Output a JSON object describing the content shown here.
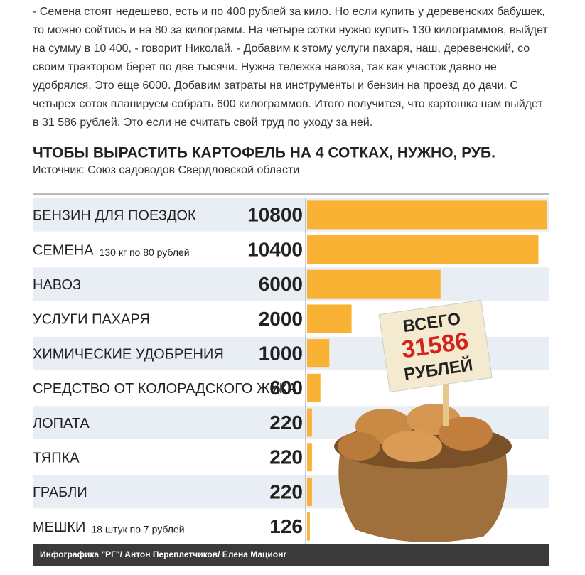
{
  "article": {
    "paragraph": "- Семена стоят недешево, есть и по 400 рублей за кило. Но если купить у деревенских бабушек, то можно сойтись и на 80 за килограмм. На четыре сотки нужно купить 130 килограммов, выйдет на сумму в 10 400, - говорит Николай. - Добавим к этому услуги пахаря, наш, деревенский, со своим трактором берет по две тысячи. Нужна тележка навоза, так как участок давно не удобрялся. Это еще 6000. Добавим затраты на инструменты и бензин на проезд до дачи. С четырех соток планируем собрать 600 килограммов. Итого получится, что картошка нам выйдет в 31 586 рублей. Это если не считать свой труд по уходу за ней."
  },
  "chart_data": {
    "type": "bar",
    "orientation": "horizontal",
    "title": "ЧТОБЫ ВЫРАСТИТЬ КАРТОФЕЛЬ НА 4 СОТКАХ, НУЖНО, РУБ.",
    "subtitle": "Источник: Союз садоводов Свердловской области",
    "categories": [
      "БЕНЗИН ДЛЯ ПОЕЗДОК",
      "СЕМЕНА",
      "НАВОЗ",
      "УСЛУГИ ПАХАРЯ",
      "ХИМИЧЕСКИЕ УДОБРЕНИЯ",
      "СРЕДСТВО ОТ КОЛОРАДСКОГО ЖУКА",
      "ЛОПАТА",
      "ТЯПКА",
      "ГРАБЛИ",
      "МЕШКИ"
    ],
    "notes": [
      null,
      "130 кг по 80 рублей",
      null,
      null,
      null,
      null,
      null,
      null,
      null,
      "18 штук по 7 рублей"
    ],
    "values": [
      10800,
      10400,
      6000,
      2000,
      1000,
      600,
      220,
      220,
      220,
      126
    ],
    "color": "#f9b233",
    "total": {
      "top": "ВСЕГО",
      "value": 31586,
      "bottom": "РУБЛЕЙ"
    },
    "caption": "Инфографика \"РГ\"/ Антон Переплетчиков/ Елена Мационг"
  }
}
